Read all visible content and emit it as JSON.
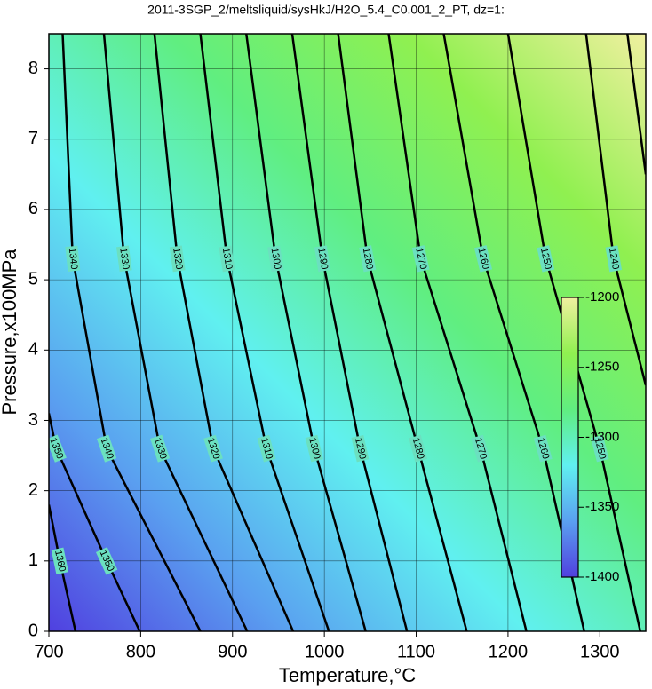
{
  "chart_data": {
    "type": "contour",
    "title": "2011-3SGP_2/meltsliquid/sysHkJ/H2O_5.4_C0.001_2_PT, dz=1:",
    "x_label": "Temperature,°C",
    "y_label": "Pressure,x100MPa",
    "xlim": [
      700,
      1350
    ],
    "xticks": [
      700,
      800,
      900,
      1000,
      1100,
      1200,
      1300
    ],
    "ylim": [
      0,
      8.5
    ],
    "yticks": [
      0,
      1,
      2,
      3,
      4,
      5,
      6,
      7,
      8
    ],
    "grid": true,
    "contours": [
      {
        "level": 1360,
        "x": [
          729,
          712,
          700
        ],
        "y": [
          0,
          1,
          1.8
        ]
      },
      {
        "level": 1350,
        "x": [
          799,
          763,
          708,
          700
        ],
        "y": [
          0,
          1,
          2.6,
          3.1
        ]
      },
      {
        "level": 1340,
        "x": [
          865,
          763,
          726,
          715
        ],
        "y": [
          0,
          2.6,
          5.3,
          8.5
        ]
      },
      {
        "level": 1330,
        "x": [
          916,
          821,
          782,
          760
        ],
        "y": [
          0,
          2.6,
          5.3,
          8.5
        ]
      },
      {
        "level": 1320,
        "x": [
          966,
          879,
          840,
          815
        ],
        "y": [
          0,
          2.6,
          5.3,
          8.5
        ]
      },
      {
        "level": 1310,
        "x": [
          1005,
          937,
          894,
          865
        ],
        "y": [
          0,
          2.6,
          5.3,
          8.5
        ]
      },
      {
        "level": 1300,
        "x": [
          1045,
          989,
          947,
          915
        ],
        "y": [
          0,
          2.6,
          5.3,
          8.5
        ]
      },
      {
        "level": 1290,
        "x": [
          1090,
          1039,
          998,
          965
        ],
        "y": [
          0,
          2.6,
          5.3,
          8.5
        ]
      },
      {
        "level": 1280,
        "x": [
          1155,
          1102,
          1047,
          1015
        ],
        "y": [
          0,
          2.6,
          5.3,
          8.5
        ]
      },
      {
        "level": 1270,
        "x": [
          1220,
          1170,
          1105,
          1070
        ],
        "y": [
          0,
          2.6,
          5.3,
          8.5
        ]
      },
      {
        "level": 1260,
        "x": [
          1283,
          1238,
          1173,
          1130
        ],
        "y": [
          0,
          2.6,
          5.3,
          8.5
        ]
      },
      {
        "level": 1250,
        "x": [
          1344,
          1300,
          1241,
          1200
        ],
        "y": [
          0,
          2.6,
          5.3,
          8.5
        ]
      },
      {
        "level": 1240,
        "x": [
          1350,
          1315,
          1285
        ],
        "y": [
          3.5,
          5.3,
          8.5
        ]
      },
      {
        "level": 1230,
        "x": [
          1350,
          1330
        ],
        "y": [
          6.5,
          8.5
        ]
      }
    ],
    "colorbar": {
      "lim": [
        -1400,
        -1200
      ],
      "ticks": [
        -1200,
        -1250,
        -1300,
        -1350,
        -1400
      ],
      "colors": [
        "#5040e0",
        "#5aa0f0",
        "#60f0f0",
        "#60ee80",
        "#90f050",
        "#f0f0a0"
      ]
    }
  }
}
